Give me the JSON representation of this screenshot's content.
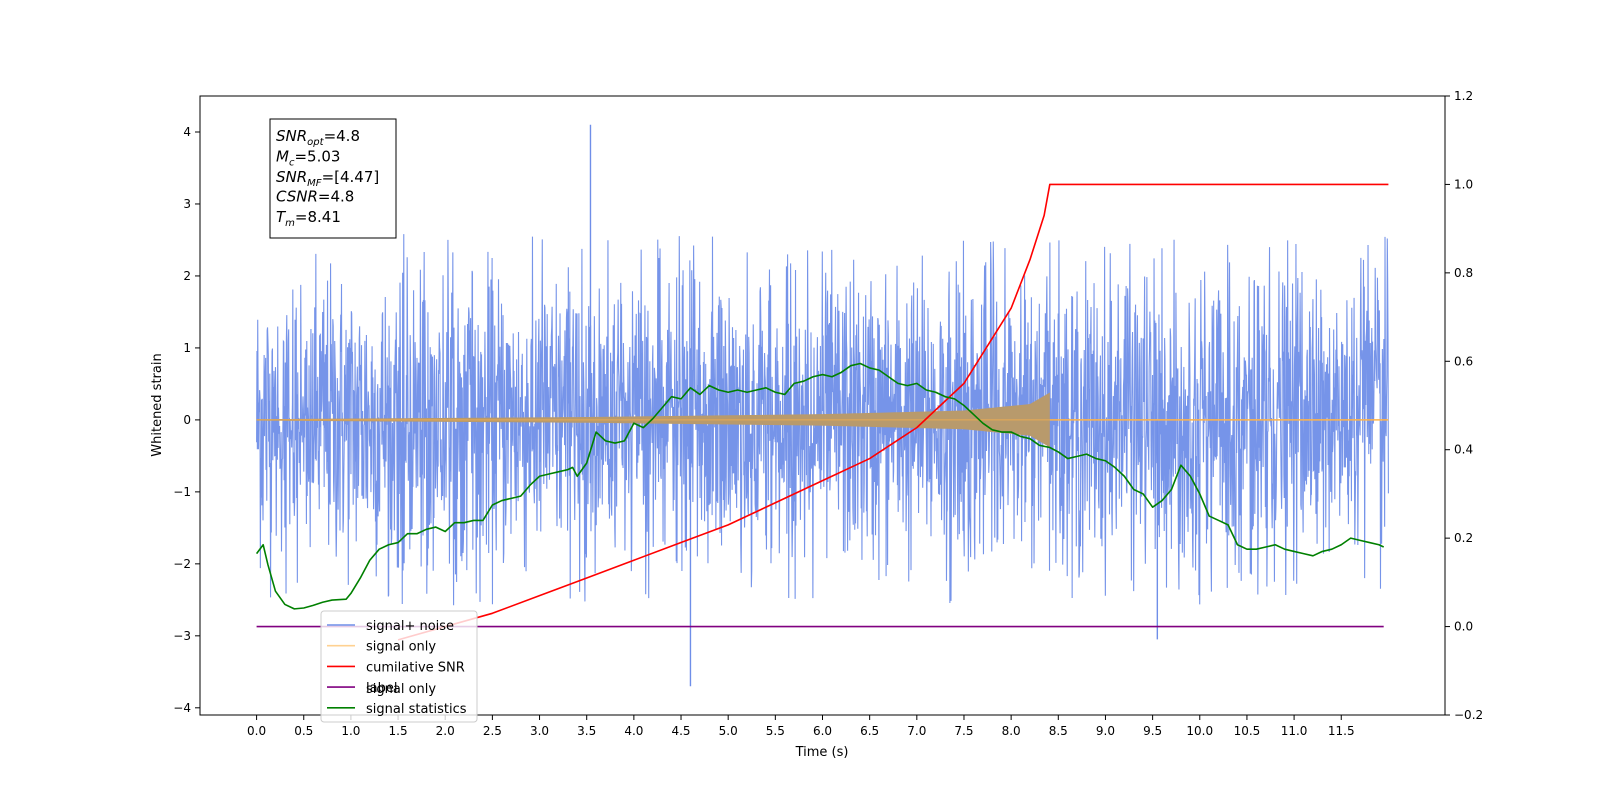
{
  "chart_data": {
    "type": "line",
    "xlabel": "Time (s)",
    "ylabel": "Whitened strain",
    "xlim": [
      -0.6,
      12.6
    ],
    "ylim": [
      -4.1,
      4.5
    ],
    "y2lim": [
      -0.2,
      1.2
    ],
    "x_ticks": [
      "0.0",
      "0.5",
      "1.0",
      "1.5",
      "2.0",
      "2.5",
      "3.0",
      "3.5",
      "4.0",
      "4.5",
      "5.0",
      "5.5",
      "6.0",
      "6.5",
      "7.0",
      "7.5",
      "8.0",
      "8.5",
      "9.0",
      "9.5",
      "10.0",
      "10.5",
      "11.0",
      "11.5"
    ],
    "y_ticks": [
      "−4",
      "−3",
      "−2",
      "−1",
      "0",
      "1",
      "2",
      "3",
      "4"
    ],
    "y2_ticks": [
      "−0.2",
      "0.0",
      "0.2",
      "0.4",
      "0.6",
      "0.8",
      "1.0",
      "1.2"
    ],
    "annotation": [
      {
        "base": "SNR",
        "sub": "opt",
        "value": "=4.8"
      },
      {
        "base": "M",
        "sub": "c",
        "value": "=5.03"
      },
      {
        "base": "SNR",
        "sub": "MF",
        "value": "=[4.47]"
      },
      {
        "base": "CSNR",
        "sub": "",
        "value": "=4.8"
      },
      {
        "base": "T",
        "sub": "m",
        "value": "=8.41"
      }
    ],
    "legend": {
      "position": "lower-left",
      "entries": [
        {
          "label": "signal+ noise",
          "color": "#6f8ee8"
        },
        {
          "label": "signal only",
          "color": "#ffb347"
        },
        {
          "label": "cumilative SNR",
          "color": "#ff0000"
        },
        {
          "label": "label",
          "color": "#800080"
        },
        {
          "label": "signal statistics",
          "color": "#008000"
        }
      ],
      "hidden_text": "signal only"
    },
    "series": [
      {
        "name": "signal+ noise",
        "axis": "left",
        "kind": "noise",
        "x_range": [
          0.0,
          12.0
        ],
        "color": "#6f8ee8",
        "peak_points": [
          [
            3.54,
            4.1
          ],
          [
            4.6,
            -3.7
          ],
          [
            9.55,
            -3.05
          ]
        ],
        "typical_range": [
          -2.6,
          2.6
        ]
      },
      {
        "name": "signal only",
        "axis": "left",
        "kind": "chirp",
        "x_range": [
          0.0,
          12.0
        ],
        "merger_time": 8.41,
        "envelope": [
          [
            0.0,
            0.01
          ],
          [
            3.5,
            0.04
          ],
          [
            6.0,
            0.08
          ],
          [
            7.5,
            0.13
          ],
          [
            8.2,
            0.22
          ],
          [
            8.41,
            0.38
          ]
        ],
        "color": "#ffb347",
        "fill_color": "#b89a6c"
      },
      {
        "name": "cumilative SNR",
        "axis": "right",
        "color": "#ff0000",
        "points": [
          [
            1.5,
            -0.03
          ],
          [
            2.0,
            0.0
          ],
          [
            2.5,
            0.03
          ],
          [
            3.0,
            0.07
          ],
          [
            3.5,
            0.11
          ],
          [
            4.0,
            0.15
          ],
          [
            4.5,
            0.19
          ],
          [
            5.0,
            0.23
          ],
          [
            5.5,
            0.28
          ],
          [
            6.0,
            0.33
          ],
          [
            6.5,
            0.38
          ],
          [
            7.0,
            0.45
          ],
          [
            7.5,
            0.55
          ],
          [
            8.0,
            0.72
          ],
          [
            8.2,
            0.83
          ],
          [
            8.35,
            0.93
          ],
          [
            8.41,
            1.0
          ],
          [
            12.0,
            1.0
          ]
        ]
      },
      {
        "name": "label",
        "axis": "right",
        "color": "#800080",
        "points": [
          [
            0.0,
            0.0
          ],
          [
            11.95,
            0.0
          ]
        ]
      },
      {
        "name": "signal statistics",
        "axis": "right",
        "color": "#008000",
        "points": [
          [
            0.0,
            0.165
          ],
          [
            0.07,
            0.185
          ],
          [
            0.12,
            0.14
          ],
          [
            0.2,
            0.08
          ],
          [
            0.3,
            0.05
          ],
          [
            0.4,
            0.04
          ],
          [
            0.5,
            0.042
          ],
          [
            0.6,
            0.048
          ],
          [
            0.7,
            0.055
          ],
          [
            0.8,
            0.06
          ],
          [
            0.95,
            0.062
          ],
          [
            1.0,
            0.075
          ],
          [
            1.1,
            0.11
          ],
          [
            1.2,
            0.15
          ],
          [
            1.3,
            0.175
          ],
          [
            1.4,
            0.185
          ],
          [
            1.5,
            0.19
          ],
          [
            1.6,
            0.21
          ],
          [
            1.7,
            0.21
          ],
          [
            1.8,
            0.22
          ],
          [
            1.9,
            0.225
          ],
          [
            2.0,
            0.215
          ],
          [
            2.1,
            0.235
          ],
          [
            2.2,
            0.235
          ],
          [
            2.3,
            0.24
          ],
          [
            2.4,
            0.24
          ],
          [
            2.5,
            0.275
          ],
          [
            2.6,
            0.285
          ],
          [
            2.7,
            0.29
          ],
          [
            2.8,
            0.295
          ],
          [
            2.9,
            0.32
          ],
          [
            3.0,
            0.34
          ],
          [
            3.1,
            0.345
          ],
          [
            3.2,
            0.35
          ],
          [
            3.3,
            0.355
          ],
          [
            3.35,
            0.36
          ],
          [
            3.4,
            0.34
          ],
          [
            3.5,
            0.37
          ],
          [
            3.6,
            0.44
          ],
          [
            3.7,
            0.42
          ],
          [
            3.8,
            0.415
          ],
          [
            3.9,
            0.42
          ],
          [
            4.0,
            0.46
          ],
          [
            4.1,
            0.45
          ],
          [
            4.2,
            0.47
          ],
          [
            4.3,
            0.495
          ],
          [
            4.4,
            0.52
          ],
          [
            4.5,
            0.515
          ],
          [
            4.6,
            0.54
          ],
          [
            4.7,
            0.525
          ],
          [
            4.8,
            0.545
          ],
          [
            4.9,
            0.535
          ],
          [
            5.0,
            0.53
          ],
          [
            5.1,
            0.535
          ],
          [
            5.2,
            0.53
          ],
          [
            5.3,
            0.535
          ],
          [
            5.4,
            0.54
          ],
          [
            5.5,
            0.53
          ],
          [
            5.6,
            0.525
          ],
          [
            5.7,
            0.55
          ],
          [
            5.8,
            0.555
          ],
          [
            5.9,
            0.565
          ],
          [
            6.0,
            0.57
          ],
          [
            6.1,
            0.565
          ],
          [
            6.2,
            0.575
          ],
          [
            6.3,
            0.59
          ],
          [
            6.4,
            0.595
          ],
          [
            6.5,
            0.585
          ],
          [
            6.6,
            0.58
          ],
          [
            6.7,
            0.565
          ],
          [
            6.8,
            0.55
          ],
          [
            6.9,
            0.545
          ],
          [
            7.0,
            0.55
          ],
          [
            7.1,
            0.535
          ],
          [
            7.2,
            0.53
          ],
          [
            7.3,
            0.52
          ],
          [
            7.4,
            0.515
          ],
          [
            7.5,
            0.5
          ],
          [
            7.6,
            0.48
          ],
          [
            7.7,
            0.46
          ],
          [
            7.8,
            0.445
          ],
          [
            7.9,
            0.44
          ],
          [
            8.0,
            0.44
          ],
          [
            8.1,
            0.43
          ],
          [
            8.2,
            0.425
          ],
          [
            8.3,
            0.41
          ],
          [
            8.41,
            0.405
          ],
          [
            8.5,
            0.395
          ],
          [
            8.6,
            0.38
          ],
          [
            8.7,
            0.385
          ],
          [
            8.8,
            0.39
          ],
          [
            8.9,
            0.38
          ],
          [
            9.0,
            0.375
          ],
          [
            9.1,
            0.36
          ],
          [
            9.2,
            0.34
          ],
          [
            9.3,
            0.31
          ],
          [
            9.4,
            0.3
          ],
          [
            9.5,
            0.27
          ],
          [
            9.6,
            0.285
          ],
          [
            9.7,
            0.31
          ],
          [
            9.8,
            0.365
          ],
          [
            9.9,
            0.34
          ],
          [
            10.0,
            0.3
          ],
          [
            10.1,
            0.25
          ],
          [
            10.2,
            0.24
          ],
          [
            10.3,
            0.23
          ],
          [
            10.4,
            0.185
          ],
          [
            10.5,
            0.175
          ],
          [
            10.6,
            0.175
          ],
          [
            10.7,
            0.18
          ],
          [
            10.8,
            0.185
          ],
          [
            10.9,
            0.175
          ],
          [
            11.0,
            0.17
          ],
          [
            11.1,
            0.165
          ],
          [
            11.2,
            0.16
          ],
          [
            11.3,
            0.17
          ],
          [
            11.4,
            0.175
          ],
          [
            11.5,
            0.185
          ],
          [
            11.6,
            0.2
          ],
          [
            11.7,
            0.195
          ],
          [
            11.8,
            0.19
          ],
          [
            11.9,
            0.185
          ],
          [
            11.95,
            0.18
          ]
        ]
      }
    ]
  }
}
